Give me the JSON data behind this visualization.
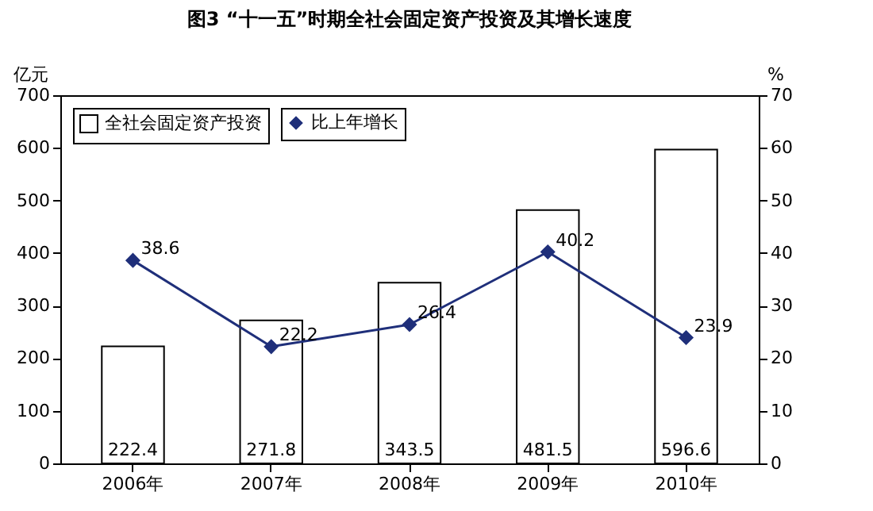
{
  "chart_data": {
    "type": "bar",
    "title": "图3 “十一五”时期全社会固定资产投资及其增长速度",
    "categories": [
      "2006年",
      "2007年",
      "2008年",
      "2009年",
      "2010年"
    ],
    "series": [
      {
        "name": "全社会固定资产投资",
        "type": "bar",
        "color": "#ffffff",
        "values": [
          222.4,
          271.8,
          343.5,
          481.5,
          596.6
        ]
      },
      {
        "name": "比上年增长",
        "type": "line",
        "axis": "y2",
        "color": "#1f2f7a",
        "values": [
          38.6,
          22.2,
          26.4,
          40.2,
          23.9
        ]
      }
    ],
    "ylabel": "亿元",
    "y2label": "%",
    "ylim": [
      0,
      700
    ],
    "yticks": [
      0,
      100,
      200,
      300,
      400,
      500,
      600,
      700
    ],
    "y2lim": [
      0,
      70
    ],
    "y2ticks": [
      0,
      10,
      20,
      30,
      40,
      50,
      60,
      70
    ],
    "legend": "top left",
    "marker": "diamond",
    "data_labels": true,
    "grid": false
  }
}
